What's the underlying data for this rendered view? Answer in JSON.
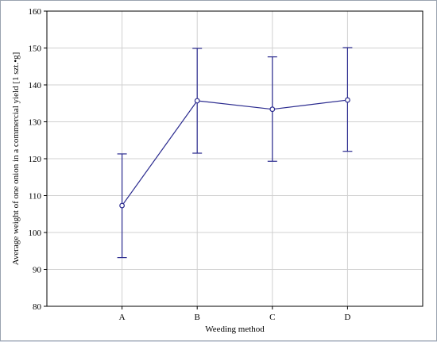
{
  "colors": {
    "series": "#2b2b8f",
    "grid": "#d0d0d0",
    "axis": "#000000"
  },
  "chart_data": {
    "type": "line",
    "title": "",
    "xlabel": "Weeding method",
    "ylabel": "Average weight of one onion in a commercial yield  [1 szt.•g]",
    "categories": [
      "A",
      "B",
      "C",
      "D"
    ],
    "series": [
      {
        "values": [
          107.3,
          135.7,
          133.4,
          135.9
        ],
        "error_low": [
          93.2,
          121.5,
          119.3,
          122.0
        ],
        "error_high": [
          121.3,
          149.9,
          147.6,
          150.1
        ]
      }
    ],
    "ylim": [
      80,
      160
    ],
    "yticks": [
      80,
      90,
      100,
      110,
      120,
      130,
      140,
      150,
      160
    ],
    "grid": true,
    "legend": "none"
  }
}
